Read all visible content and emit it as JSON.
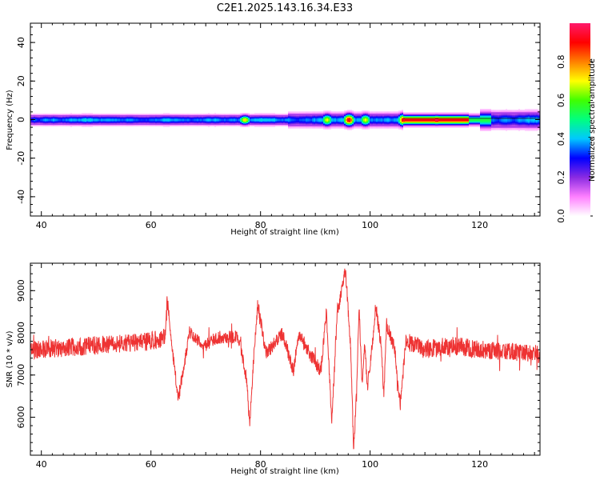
{
  "title": "C2E1.2025.143.16.34.E33",
  "chart_data": [
    {
      "type": "heatmap",
      "xlabel": "Height of straight line (km)",
      "ylabel": "Frequency (Hz)",
      "xlim": [
        38,
        131
      ],
      "ylim": [
        -50,
        50
      ],
      "xticks": [
        "40",
        "60",
        "80",
        "100",
        "120"
      ],
      "yticks": [
        "40",
        "20",
        "0",
        "-20",
        "-40"
      ],
      "xtick_values": [
        40,
        60,
        80,
        100,
        120
      ],
      "ytick_values": [
        40,
        20,
        0,
        -20,
        -40
      ],
      "band_center_hz": 0,
      "band_halfwidth_hz": 2.5,
      "hotspots": [
        {
          "x": 77,
          "amp": 0.75
        },
        {
          "x": 92,
          "amp": 0.7
        },
        {
          "x": 96,
          "amp": 0.95
        },
        {
          "x": 99,
          "amp": 0.7
        },
        {
          "x": 106,
          "amp": 0.95
        },
        {
          "x": 112,
          "amp": 1.0
        },
        {
          "x": 117,
          "amp": 0.9
        }
      ],
      "colorbar": {
        "label": "Normalized spectral amplitude",
        "ticks": [
          "0.0",
          "0.2",
          "0.4",
          "0.6",
          "0.8"
        ],
        "tick_values": [
          0.0,
          0.2,
          0.4,
          0.6,
          0.8
        ],
        "range": [
          0,
          1
        ],
        "colors": [
          "#ffffff",
          "#ff80ff",
          "#8a2be2",
          "#0000ff",
          "#00c8ff",
          "#00ff80",
          "#40ff00",
          "#ffff00",
          "#ff8000",
          "#ff0000",
          "#ff1a6b"
        ]
      }
    },
    {
      "type": "line",
      "xlabel": "Height of straight line (km)",
      "ylabel": "SNR (10 * v/v)",
      "xlim": [
        38,
        131
      ],
      "ylim": [
        5100,
        9650
      ],
      "xticks": [
        "40",
        "60",
        "80",
        "100",
        "120"
      ],
      "yticks": [
        "9000",
        "8000",
        "7000",
        "6000"
      ],
      "xtick_values": [
        40,
        60,
        80,
        100,
        120
      ],
      "ytick_values": [
        9000,
        8000,
        7000,
        6000
      ],
      "line_color": "#ee3333",
      "key_points": [
        [
          38,
          7600
        ],
        [
          45,
          7650
        ],
        [
          55,
          7750
        ],
        [
          60,
          7800
        ],
        [
          62.5,
          7900
        ],
        [
          63,
          8750
        ],
        [
          64,
          7500
        ],
        [
          65,
          6450
        ],
        [
          66,
          7200
        ],
        [
          67,
          8000
        ],
        [
          70,
          7700
        ],
        [
          72,
          7900
        ],
        [
          76,
          7900
        ],
        [
          77.5,
          6900
        ],
        [
          78,
          5800
        ],
        [
          78.8,
          7500
        ],
        [
          79.5,
          8700
        ],
        [
          81,
          7500
        ],
        [
          84,
          8000
        ],
        [
          86,
          7100
        ],
        [
          87,
          8000
        ],
        [
          89,
          7500
        ],
        [
          91,
          7100
        ],
        [
          92,
          8500
        ],
        [
          93,
          5900
        ],
        [
          94,
          8500
        ],
        [
          95.5,
          9500
        ],
        [
          96.5,
          7500
        ],
        [
          97,
          5150
        ],
        [
          97.5,
          6600
        ],
        [
          98,
          8600
        ],
        [
          98.5,
          6800
        ],
        [
          99,
          7700
        ],
        [
          99.5,
          6700
        ],
        [
          100.5,
          7800
        ],
        [
          101,
          8650
        ],
        [
          102,
          7700
        ],
        [
          102.5,
          6500
        ],
        [
          103,
          8200
        ],
        [
          104.5,
          7600
        ],
        [
          105.5,
          6300
        ],
        [
          106.5,
          7800
        ],
        [
          110,
          7600
        ],
        [
          115,
          7700
        ],
        [
          120,
          7600
        ],
        [
          125,
          7550
        ],
        [
          131,
          7500
        ]
      ]
    }
  ]
}
